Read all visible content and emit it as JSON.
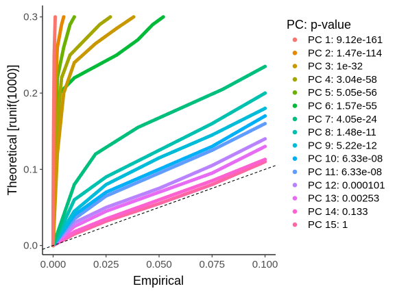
{
  "chart_data": {
    "type": "scatter",
    "xlabel": "Empirical",
    "ylabel": "Theoretical [runif(1000)]",
    "xlim": [
      -0.005,
      0.105
    ],
    "ylim": [
      -0.012,
      0.315
    ],
    "x_ticks": [
      {
        "value": 0.0,
        "label": "0.000"
      },
      {
        "value": 0.025,
        "label": "0.025"
      },
      {
        "value": 0.05,
        "label": "0.050"
      },
      {
        "value": 0.075,
        "label": "0.075"
      },
      {
        "value": 0.1,
        "label": "0.100"
      }
    ],
    "y_ticks": [
      {
        "value": 0.0,
        "label": "0.0"
      },
      {
        "value": 0.1,
        "label": "0.1"
      },
      {
        "value": 0.2,
        "label": "0.2"
      },
      {
        "value": 0.3,
        "label": "0.3"
      }
    ],
    "grid": false,
    "legend_position": "right",
    "legend_title": "PC: p-value",
    "reference_line": {
      "style": "dashed",
      "slope": 1,
      "intercept": 0,
      "color": "#000000"
    },
    "series": [
      {
        "name": "PC 1: 9.12e-161",
        "color": "#F8766D",
        "x": [
          0,
          0,
          0.0002,
          0.0005,
          0.001
        ],
        "y": [
          0,
          0.05,
          0.15,
          0.25,
          0.3
        ]
      },
      {
        "name": "PC 2: 1.47e-114",
        "color": "#E58700",
        "x": [
          0,
          0.0005,
          0.001,
          0.002,
          0.004,
          0.005
        ],
        "y": [
          0,
          0.12,
          0.2,
          0.26,
          0.29,
          0.3
        ]
      },
      {
        "name": "PC 3: 1e-32",
        "color": "#C99800",
        "x": [
          0,
          0.002,
          0.005,
          0.01,
          0.02,
          0.03,
          0.038
        ],
        "y": [
          0,
          0.12,
          0.2,
          0.24,
          0.265,
          0.285,
          0.3
        ]
      },
      {
        "name": "PC 4: 3.04e-58",
        "color": "#A3A500",
        "x": [
          0,
          0.001,
          0.004,
          0.008,
          0.015,
          0.022,
          0.027
        ],
        "y": [
          0,
          0.13,
          0.22,
          0.25,
          0.27,
          0.29,
          0.3
        ]
      },
      {
        "name": "PC 5: 5.05e-56",
        "color": "#6BB100",
        "x": [
          0,
          0.001,
          0.002,
          0.005,
          0.008,
          0.01
        ],
        "y": [
          0,
          0.12,
          0.22,
          0.26,
          0.29,
          0.3
        ]
      },
      {
        "name": "PC 6: 1.57e-55",
        "color": "#00BA38",
        "x": [
          0,
          0.003,
          0.01,
          0.02,
          0.03,
          0.04,
          0.047,
          0.052
        ],
        "y": [
          0,
          0.2,
          0.22,
          0.235,
          0.25,
          0.27,
          0.29,
          0.3
        ]
      },
      {
        "name": "PC 7: 4.05e-24",
        "color": "#00BF7D",
        "x": [
          0,
          0.01,
          0.02,
          0.04,
          0.06,
          0.08,
          0.1
        ],
        "y": [
          0,
          0.08,
          0.12,
          0.155,
          0.18,
          0.205,
          0.235
        ]
      },
      {
        "name": "PC 8: 1.48e-11",
        "color": "#00C0AF",
        "x": [
          0,
          0.01,
          0.025,
          0.05,
          0.075,
          0.1
        ],
        "y": [
          0,
          0.06,
          0.09,
          0.125,
          0.16,
          0.2
        ]
      },
      {
        "name": "PC 9: 5.22e-12",
        "color": "#00BCD8",
        "x": [
          0,
          0.01,
          0.025,
          0.05,
          0.075,
          0.1
        ],
        "y": [
          0,
          0.045,
          0.08,
          0.115,
          0.145,
          0.18
        ]
      },
      {
        "name": "PC 10: 6.33e-08",
        "color": "#00B0F6",
        "x": [
          0,
          0.01,
          0.025,
          0.05,
          0.075,
          0.1
        ],
        "y": [
          0,
          0.04,
          0.07,
          0.1,
          0.13,
          0.17
        ]
      },
      {
        "name": "PC 11: 6.33e-08",
        "color": "#619CFF",
        "x": [
          0,
          0.01,
          0.025,
          0.05,
          0.075,
          0.1
        ],
        "y": [
          0,
          0.035,
          0.065,
          0.095,
          0.125,
          0.16
        ]
      },
      {
        "name": "PC 12: 0.000101",
        "color": "#B983FF",
        "x": [
          0,
          0.01,
          0.025,
          0.05,
          0.075,
          0.1
        ],
        "y": [
          0,
          0.03,
          0.05,
          0.075,
          0.105,
          0.14
        ]
      },
      {
        "name": "PC 13: 0.00253",
        "color": "#E76BF3",
        "x": [
          0,
          0.01,
          0.025,
          0.05,
          0.075,
          0.1
        ],
        "y": [
          0,
          0.025,
          0.045,
          0.07,
          0.095,
          0.13
        ]
      },
      {
        "name": "PC 14: 0.133",
        "color": "#FD61D1",
        "x": [
          0,
          0.01,
          0.025,
          0.05,
          0.075,
          0.1
        ],
        "y": [
          0,
          0.018,
          0.035,
          0.06,
          0.085,
          0.113
        ]
      },
      {
        "name": "PC 15: 1",
        "color": "#FF67A4",
        "x": [
          0,
          0.01,
          0.025,
          0.05,
          0.075,
          0.1
        ],
        "y": [
          0,
          0.015,
          0.032,
          0.055,
          0.08,
          0.11
        ]
      }
    ]
  }
}
